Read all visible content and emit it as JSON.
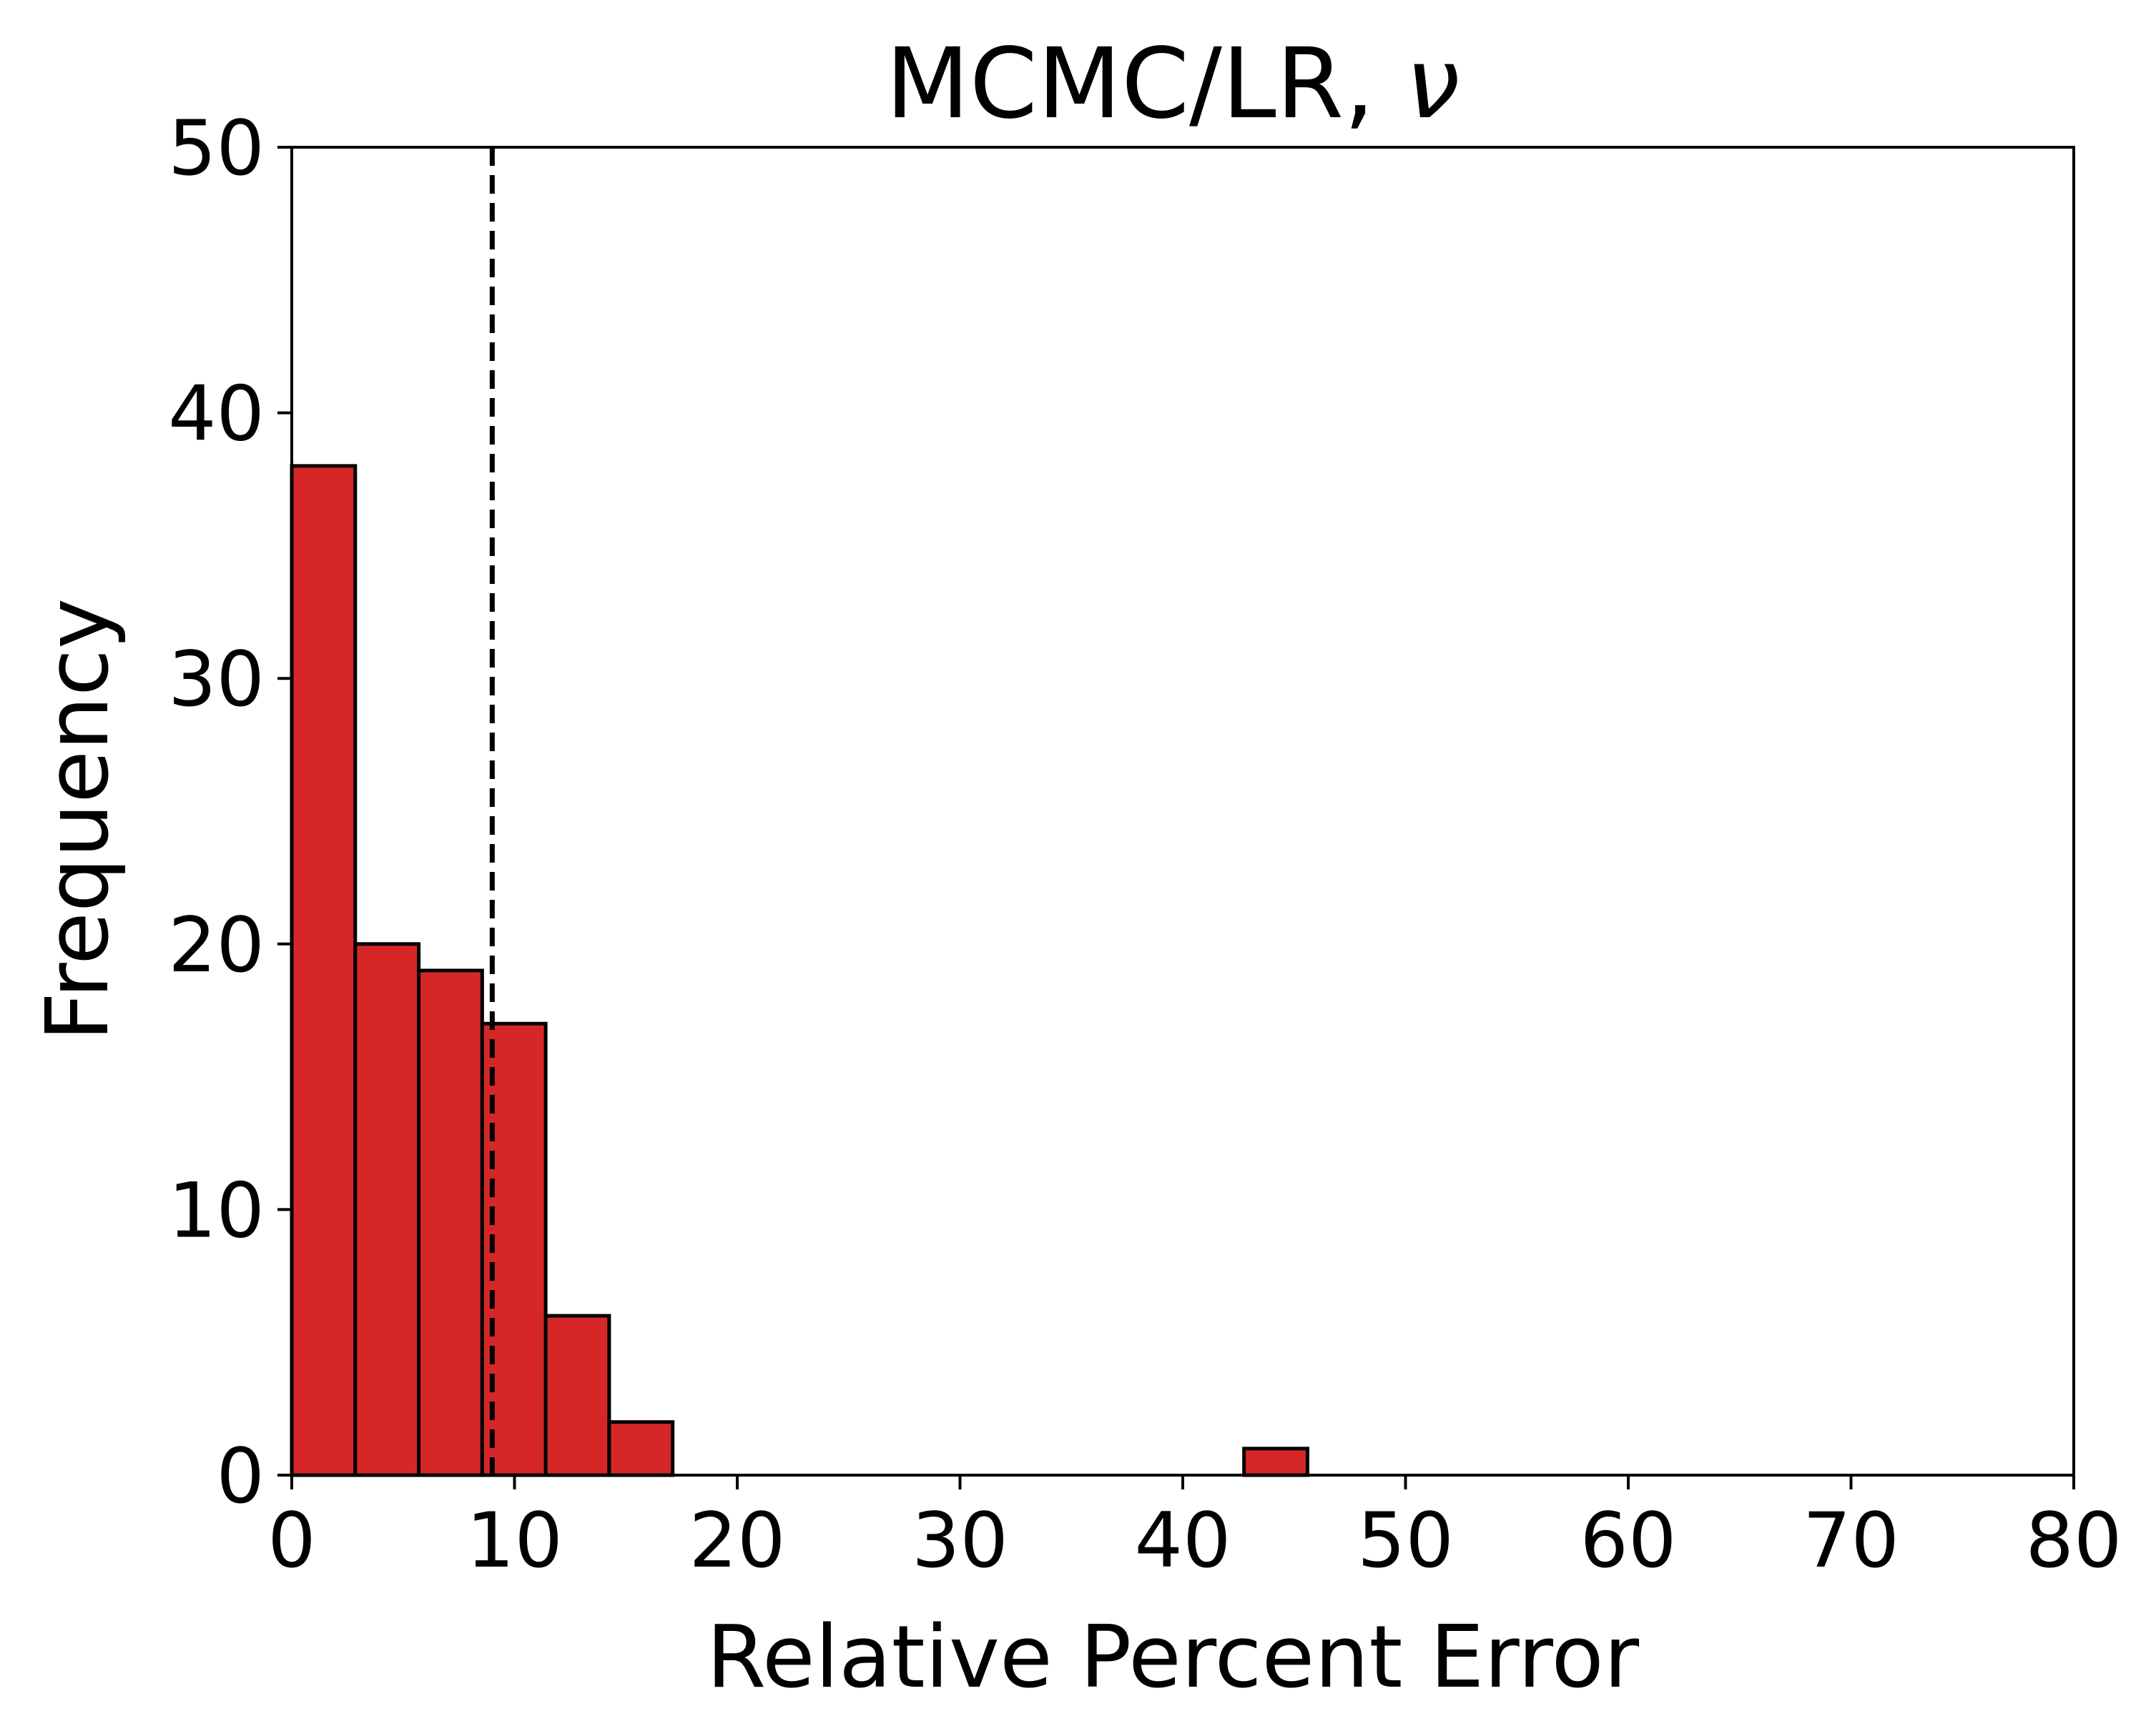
{
  "chart_data": {
    "type": "bar",
    "title": "MCMC/LR, ",
    "title_symbol": "ν",
    "xlabel": "Relative Percent Error",
    "ylabel": "Frequency",
    "xlim": [
      0,
      80
    ],
    "ylim": [
      0,
      50
    ],
    "xticks": [
      0,
      10,
      20,
      30,
      40,
      50,
      60,
      70,
      80
    ],
    "yticks": [
      0,
      10,
      20,
      30,
      40,
      50
    ],
    "grid": false,
    "bar_color": "#d62728",
    "edge_color": "#000000",
    "bins": [
      {
        "x0": 0.0,
        "x1": 2.85,
        "value": 38
      },
      {
        "x0": 2.85,
        "x1": 5.7,
        "value": 20
      },
      {
        "x0": 5.7,
        "x1": 8.55,
        "value": 19
      },
      {
        "x0": 8.55,
        "x1": 11.4,
        "value": 17
      },
      {
        "x0": 11.4,
        "x1": 14.25,
        "value": 6
      },
      {
        "x0": 14.25,
        "x1": 17.1,
        "value": 2
      },
      {
        "x0": 42.75,
        "x1": 45.6,
        "value": 1
      }
    ],
    "reference_line": {
      "x": 9.0,
      "style": "dashed",
      "color": "#000000"
    }
  }
}
